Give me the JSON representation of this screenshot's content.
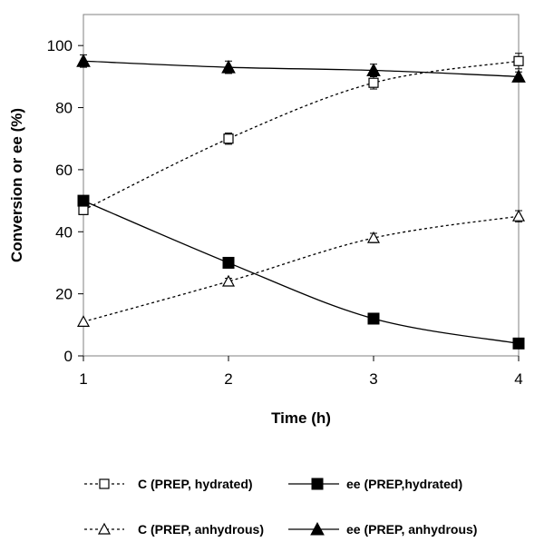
{
  "chart_data": {
    "type": "line",
    "title": "",
    "xlabel": "Time (h)",
    "ylabel": "Conversion or ee (%)",
    "x": [
      1,
      2,
      3,
      4
    ],
    "xlim": [
      1,
      4
    ],
    "ylim": [
      0,
      110
    ],
    "xticks": [
      "1",
      "2",
      "3",
      "4"
    ],
    "yticks": [
      "0",
      "20",
      "40",
      "60",
      "80",
      "100"
    ],
    "grid": false,
    "legend_position": "bottom",
    "series": [
      {
        "name": "C (PREP, hydrated)",
        "values": [
          47,
          70,
          88,
          95
        ],
        "errors": [
          1.5,
          1.8,
          2.0,
          2.5
        ],
        "marker": "open-square",
        "line": "dotted",
        "curve": "smooth"
      },
      {
        "name": "ee (PREP,hydrated)",
        "values": [
          50,
          30,
          12,
          4
        ],
        "errors": [
          0,
          0,
          0,
          0
        ],
        "marker": "filled-square",
        "line": "solid",
        "curve": "smooth"
      },
      {
        "name": "C (PREP, anhydrous)",
        "values": [
          11,
          24,
          38,
          45
        ],
        "errors": [
          0,
          1.0,
          1.5,
          1.8
        ],
        "marker": "open-triangle",
        "line": "dotted",
        "curve": "smooth"
      },
      {
        "name": "ee (PREP, anhydrous)",
        "values": [
          95,
          93,
          92,
          90
        ],
        "errors": [
          2.0,
          2.0,
          2.0,
          1.5
        ],
        "marker": "filled-triangle",
        "line": "solid",
        "curve": "smooth"
      }
    ]
  }
}
